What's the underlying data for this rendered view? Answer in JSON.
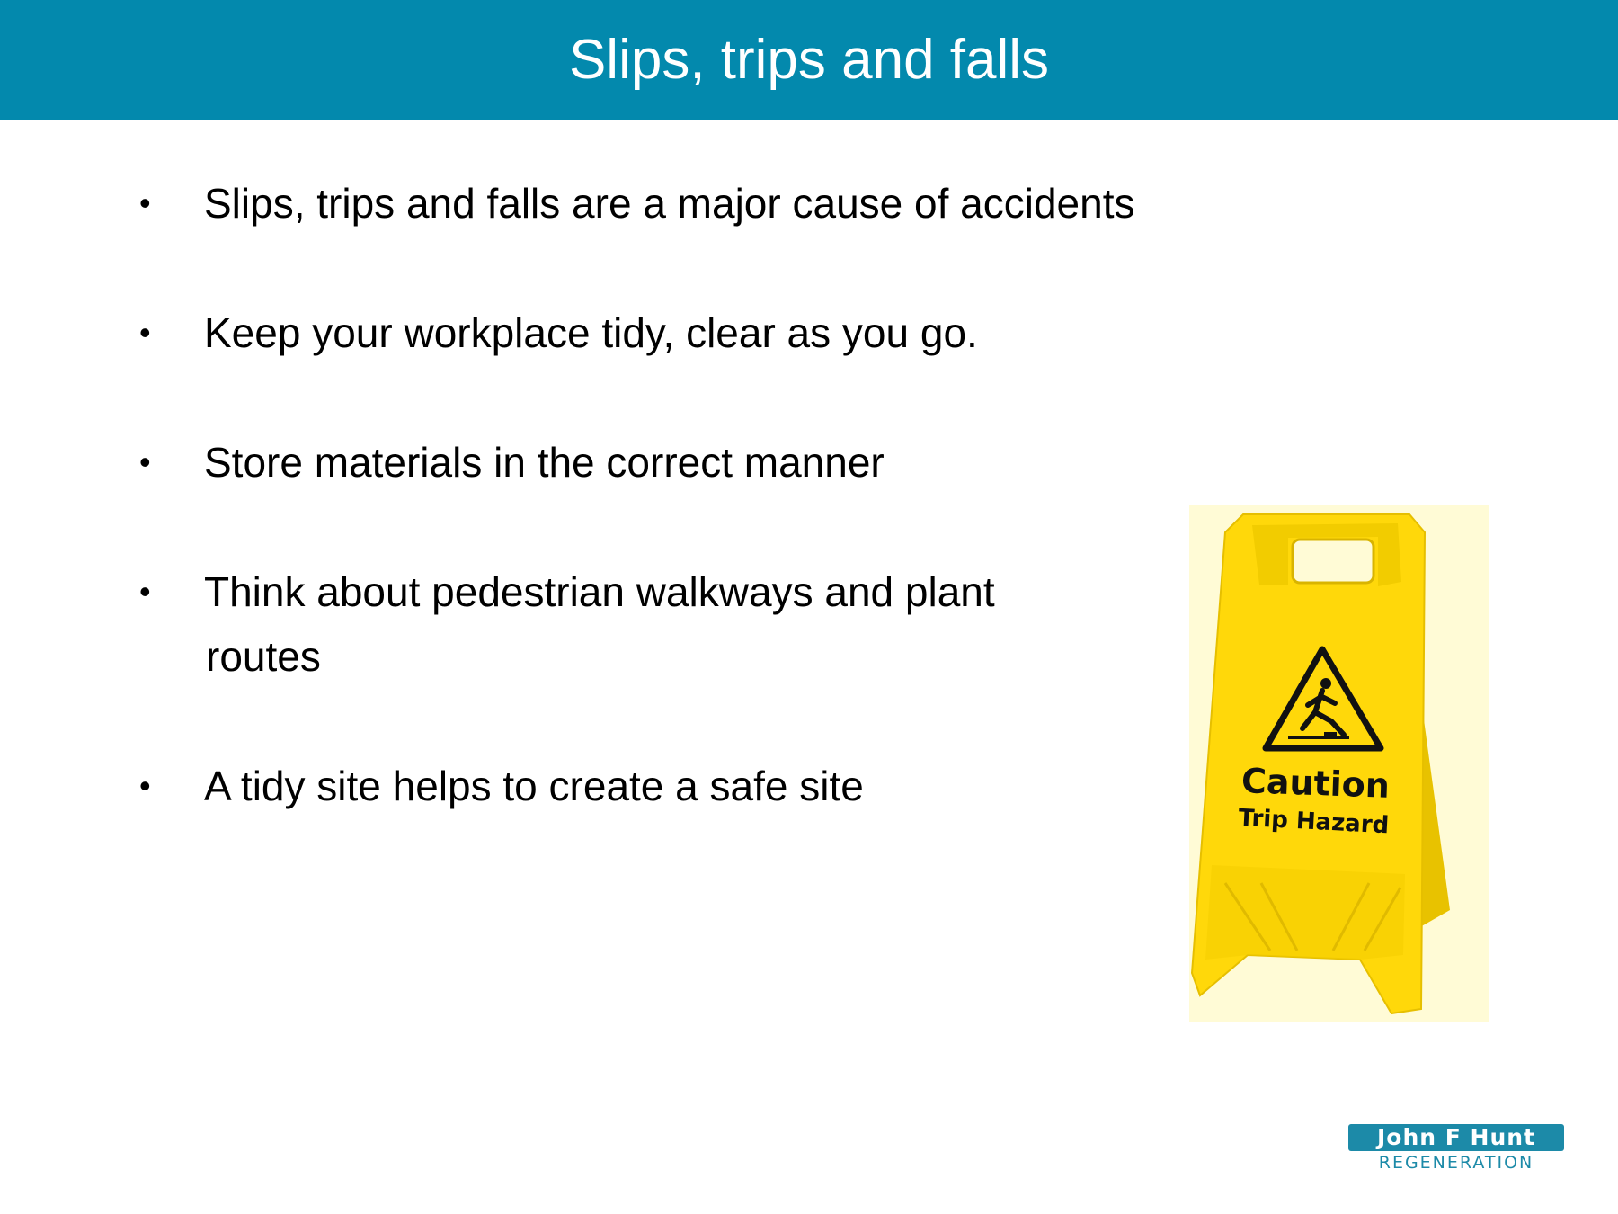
{
  "header": {
    "title": "Slips, trips and falls",
    "background": "#0389ad"
  },
  "bullets": [
    {
      "text": "Slips, trips and falls are a major cause of accidents"
    },
    {
      "text": "Keep your workplace tidy, clear as you go."
    },
    {
      "text": "Store materials in the correct manner"
    },
    {
      "text": "Think about pedestrian walkways and plant",
      "continuation": "routes"
    },
    {
      "text": "A tidy site helps to create a safe site"
    }
  ],
  "sign": {
    "icon": "caution-trip-hazard-sign-icon",
    "heading": "Caution",
    "subheading": "Trip Hazard",
    "color": "#ffd80a"
  },
  "logo": {
    "name": "John F Hunt",
    "tagline": "REGENERATION",
    "color": "#1c8aa8"
  }
}
